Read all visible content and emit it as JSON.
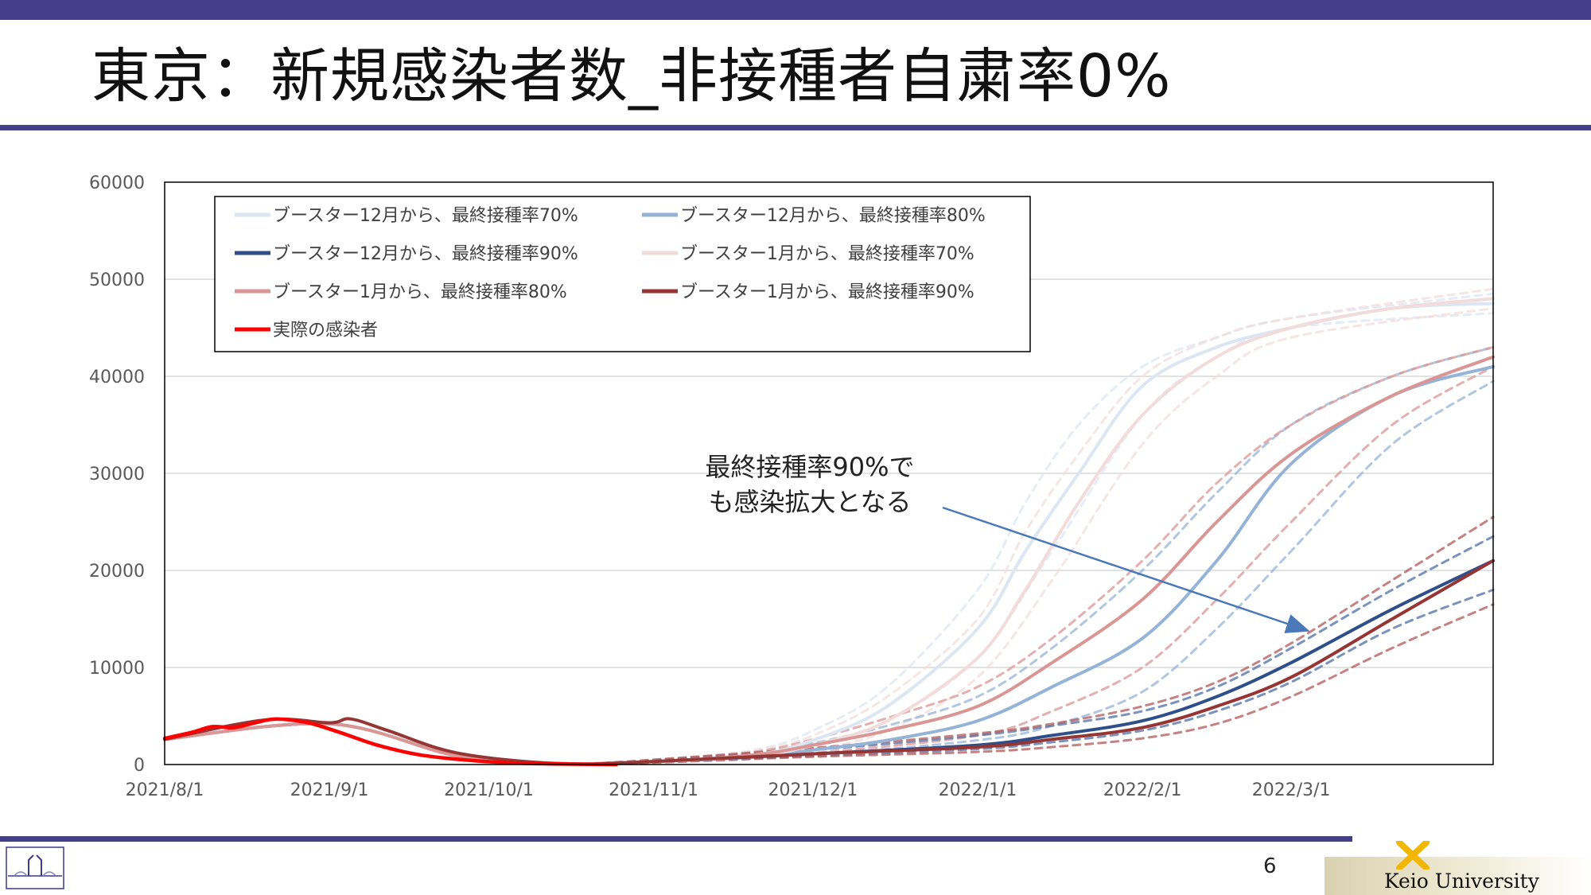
{
  "title": "東京：新規感染者数_非接種者自粛率0%",
  "page_number": "6",
  "annotation": [
    "最終接種率90%で",
    "も感染拡大となる"
  ],
  "logo_text": "Keio University",
  "chart_data": {
    "type": "line",
    "title": "",
    "xlabel": "",
    "ylabel": "",
    "ylim": [
      0,
      60000
    ],
    "yticks": [
      0,
      10000,
      20000,
      30000,
      40000,
      50000,
      60000
    ],
    "xticks": [
      "2021/8/1",
      "2021/9/1",
      "2021/10/1",
      "2021/11/1",
      "2021/12/1",
      "2022/1/1",
      "2022/2/1",
      "2022/3/1"
    ],
    "xlim": [
      "2021-08-01",
      "2022-04-08"
    ],
    "grid": true,
    "legend_position": "top-left",
    "series": [
      {
        "name": "ブースター12月から、最終接種率70%",
        "color": "#dce6f2",
        "style": "solid",
        "x": [
          "2021-08-01",
          "2021-09-01",
          "2021-09-25",
          "2021-10-14",
          "2021-11-01",
          "2021-11-20",
          "2021-12-01",
          "2021-12-15",
          "2022-01-01",
          "2022-01-10",
          "2022-01-20",
          "2022-02-01",
          "2022-02-15",
          "2022-03-01",
          "2022-03-20",
          "2022-04-08"
        ],
        "y": [
          2600,
          4200,
          900,
          100,
          300,
          1000,
          2500,
          6000,
          14000,
          22000,
          30000,
          39000,
          43000,
          45000,
          47000,
          47500
        ]
      },
      {
        "name": "ブースター12月から、最終接種率80%",
        "color": "#95b3d7",
        "style": "solid",
        "x": [
          "2021-08-01",
          "2021-09-01",
          "2021-09-25",
          "2021-10-14",
          "2021-11-01",
          "2021-11-20",
          "2021-12-01",
          "2021-12-15",
          "2022-01-01",
          "2022-01-15",
          "2022-02-01",
          "2022-02-15",
          "2022-03-01",
          "2022-03-20",
          "2022-04-08"
        ],
        "y": [
          2600,
          4200,
          900,
          100,
          300,
          800,
          1500,
          2500,
          4500,
          8000,
          13000,
          21000,
          31000,
          38000,
          41000
        ]
      },
      {
        "name": "ブースター12月から、最終接種率90%",
        "color": "#2f4f8a",
        "style": "solid",
        "x": [
          "2021-08-01",
          "2021-09-01",
          "2021-09-25",
          "2021-10-14",
          "2021-11-01",
          "2021-12-01",
          "2022-01-01",
          "2022-01-15",
          "2022-02-01",
          "2022-02-15",
          "2022-03-01",
          "2022-03-20",
          "2022-04-08"
        ],
        "y": [
          2600,
          4200,
          900,
          100,
          300,
          1100,
          2000,
          3000,
          4500,
          7000,
          10500,
          16000,
          21000
        ]
      },
      {
        "name": "ブースター1月から、最終接種率70%",
        "color": "#f2dcdb",
        "style": "solid",
        "x": [
          "2021-08-01",
          "2021-09-01",
          "2021-09-25",
          "2021-10-14",
          "2021-11-01",
          "2021-11-20",
          "2021-12-01",
          "2021-12-15",
          "2022-01-01",
          "2022-01-10",
          "2022-01-20",
          "2022-02-01",
          "2022-02-15",
          "2022-03-01",
          "2022-03-20",
          "2022-04-08"
        ],
        "y": [
          2600,
          4200,
          900,
          100,
          300,
          900,
          2000,
          4500,
          11000,
          18000,
          27000,
          36000,
          42000,
          45000,
          47000,
          48000
        ]
      },
      {
        "name": "ブースター1月から、最終接種率80%",
        "color": "#d99694",
        "style": "solid",
        "x": [
          "2021-08-01",
          "2021-09-01",
          "2021-09-25",
          "2021-10-14",
          "2021-11-01",
          "2021-11-20",
          "2021-12-01",
          "2021-12-15",
          "2022-01-01",
          "2022-01-15",
          "2022-02-01",
          "2022-02-15",
          "2022-03-01",
          "2022-03-20",
          "2022-04-08"
        ],
        "y": [
          2600,
          4200,
          900,
          100,
          300,
          1000,
          2000,
          3500,
          6000,
          10500,
          17000,
          25000,
          32000,
          38000,
          42000
        ]
      },
      {
        "name": "ブースター1月から、最終接種率90%",
        "color": "#963634",
        "style": "solid",
        "x": [
          "2021-08-01",
          "2021-08-20",
          "2021-09-01",
          "2021-09-05",
          "2021-09-12",
          "2021-09-25",
          "2021-10-14",
          "2021-11-01",
          "2021-12-01",
          "2022-01-01",
          "2022-01-15",
          "2022-02-01",
          "2022-02-15",
          "2022-03-01",
          "2022-03-20",
          "2022-04-08"
        ],
        "y": [
          2600,
          4600,
          4300,
          4700,
          3500,
          1200,
          100,
          300,
          1100,
          1800,
          2600,
          3800,
          6000,
          9000,
          15000,
          21000
        ]
      },
      {
        "name": "実際の感染者",
        "color": "#ff0000",
        "style": "solid",
        "x": [
          "2021-08-01",
          "2021-08-06",
          "2021-08-10",
          "2021-08-14",
          "2021-08-18",
          "2021-08-22",
          "2021-08-28",
          "2021-09-03",
          "2021-09-10",
          "2021-09-18",
          "2021-09-26",
          "2021-10-04",
          "2021-10-14",
          "2021-10-25"
        ],
        "y": [
          2700,
          3300,
          3900,
          3800,
          4300,
          4700,
          4300,
          3300,
          2000,
          1000,
          500,
          200,
          60,
          0
        ]
      },
      {
        "name": "",
        "color": "#dce6f2",
        "style": "dashed",
        "x": [
          "2021-10-20",
          "2021-11-01",
          "2021-11-20",
          "2021-12-01",
          "2021-12-15",
          "2022-01-01",
          "2022-01-10",
          "2022-01-20",
          "2022-02-01",
          "2022-02-15",
          "2022-03-01",
          "2022-04-08"
        ],
        "y": [
          100,
          500,
          1500,
          3500,
          8000,
          18000,
          27000,
          35000,
          41000,
          44000,
          46000,
          48500
        ]
      },
      {
        "name": "",
        "color": "#dce6f2",
        "style": "dashed",
        "x": [
          "2021-10-20",
          "2021-11-01",
          "2021-11-20",
          "2021-12-01",
          "2021-12-15",
          "2022-01-01",
          "2022-01-15",
          "2022-02-01",
          "2022-02-15",
          "2022-03-01",
          "2022-04-08"
        ],
        "y": [
          80,
          200,
          700,
          1800,
          4500,
          11000,
          22000,
          36000,
          42000,
          45000,
          46500
        ]
      },
      {
        "name": "",
        "color": "#f2dcdb",
        "style": "dashed",
        "x": [
          "2021-10-20",
          "2021-11-01",
          "2021-11-20",
          "2021-12-01",
          "2021-12-15",
          "2022-01-01",
          "2022-01-10",
          "2022-01-20",
          "2022-02-01",
          "2022-02-15",
          "2022-03-01",
          "2022-04-08"
        ],
        "y": [
          100,
          400,
          1400,
          3000,
          7000,
          15000,
          24000,
          32000,
          40000,
          44000,
          46000,
          49000
        ]
      },
      {
        "name": "",
        "color": "#f2dcdb",
        "style": "dashed",
        "x": [
          "2021-10-20",
          "2021-11-01",
          "2021-11-20",
          "2021-12-01",
          "2021-12-15",
          "2022-01-01",
          "2022-01-15",
          "2022-02-01",
          "2022-02-15",
          "2022-03-01",
          "2022-04-08"
        ],
        "y": [
          80,
          200,
          600,
          1500,
          3500,
          9000,
          19000,
          33000,
          40000,
          44000,
          47000
        ]
      },
      {
        "name": "",
        "color": "#95b3d7",
        "style": "dashed",
        "x": [
          "2021-10-20",
          "2021-11-01",
          "2021-11-20",
          "2021-12-01",
          "2021-12-15",
          "2022-01-01",
          "2022-01-15",
          "2022-02-01",
          "2022-02-15",
          "2022-03-01",
          "2022-03-20",
          "2022-04-08"
        ],
        "y": [
          100,
          400,
          1200,
          2200,
          4000,
          7000,
          12000,
          20000,
          28000,
          35000,
          40000,
          43000
        ]
      },
      {
        "name": "",
        "color": "#95b3d7",
        "style": "dashed",
        "x": [
          "2021-10-20",
          "2021-11-01",
          "2021-12-01",
          "2022-01-01",
          "2022-01-15",
          "2022-02-01",
          "2022-02-15",
          "2022-03-01",
          "2022-03-20",
          "2022-04-08"
        ],
        "y": [
          80,
          200,
          1000,
          2500,
          4000,
          7500,
          14000,
          22000,
          33000,
          39500
        ]
      },
      {
        "name": "",
        "color": "#d99694",
        "style": "dashed",
        "x": [
          "2021-10-20",
          "2021-11-01",
          "2021-11-20",
          "2021-12-01",
          "2021-12-15",
          "2022-01-01",
          "2022-01-15",
          "2022-02-01",
          "2022-02-15",
          "2022-03-01",
          "2022-03-20",
          "2022-04-08"
        ],
        "y": [
          100,
          400,
          1300,
          2600,
          4800,
          8000,
          13000,
          21000,
          29000,
          35000,
          40000,
          43000
        ]
      },
      {
        "name": "",
        "color": "#d99694",
        "style": "dashed",
        "x": [
          "2021-10-20",
          "2021-11-01",
          "2021-12-01",
          "2022-01-01",
          "2022-01-15",
          "2022-02-01",
          "2022-02-15",
          "2022-03-01",
          "2022-03-20",
          "2022-04-08"
        ],
        "y": [
          80,
          200,
          1200,
          3000,
          5500,
          10000,
          17000,
          25000,
          35000,
          41000
        ]
      },
      {
        "name": "",
        "color": "#4f6fa6",
        "style": "dashed",
        "x": [
          "2021-10-20",
          "2021-11-01",
          "2021-12-01",
          "2022-01-01",
          "2022-01-15",
          "2022-02-01",
          "2022-02-15",
          "2022-03-01",
          "2022-03-20",
          "2022-04-08"
        ],
        "y": [
          100,
          400,
          1500,
          3000,
          4000,
          5500,
          8000,
          12000,
          18000,
          23500
        ]
      },
      {
        "name": "",
        "color": "#4f6fa6",
        "style": "dashed",
        "x": [
          "2021-10-20",
          "2021-11-01",
          "2021-12-01",
          "2022-01-01",
          "2022-01-15",
          "2022-02-01",
          "2022-02-15",
          "2022-03-01",
          "2022-03-20",
          "2022-04-08"
        ],
        "y": [
          80,
          250,
          900,
          1600,
          2300,
          3500,
          5500,
          8500,
          14000,
          18000
        ]
      },
      {
        "name": "",
        "color": "#b05a58",
        "style": "dashed",
        "x": [
          "2021-10-20",
          "2021-11-01",
          "2021-12-01",
          "2022-01-01",
          "2022-01-15",
          "2022-02-01",
          "2022-02-15",
          "2022-03-01",
          "2022-03-20",
          "2022-04-08"
        ],
        "y": [
          100,
          500,
          1700,
          3200,
          4200,
          6000,
          8500,
          12500,
          19000,
          25500
        ]
      },
      {
        "name": "",
        "color": "#b05a58",
        "style": "dashed",
        "x": [
          "2021-10-20",
          "2021-11-01",
          "2021-12-01",
          "2022-01-01",
          "2022-01-15",
          "2022-02-01",
          "2022-02-15",
          "2022-03-01",
          "2022-03-20",
          "2022-04-08"
        ],
        "y": [
          80,
          200,
          800,
          1300,
          1800,
          2700,
          4200,
          7000,
          12000,
          16500
        ]
      }
    ]
  }
}
